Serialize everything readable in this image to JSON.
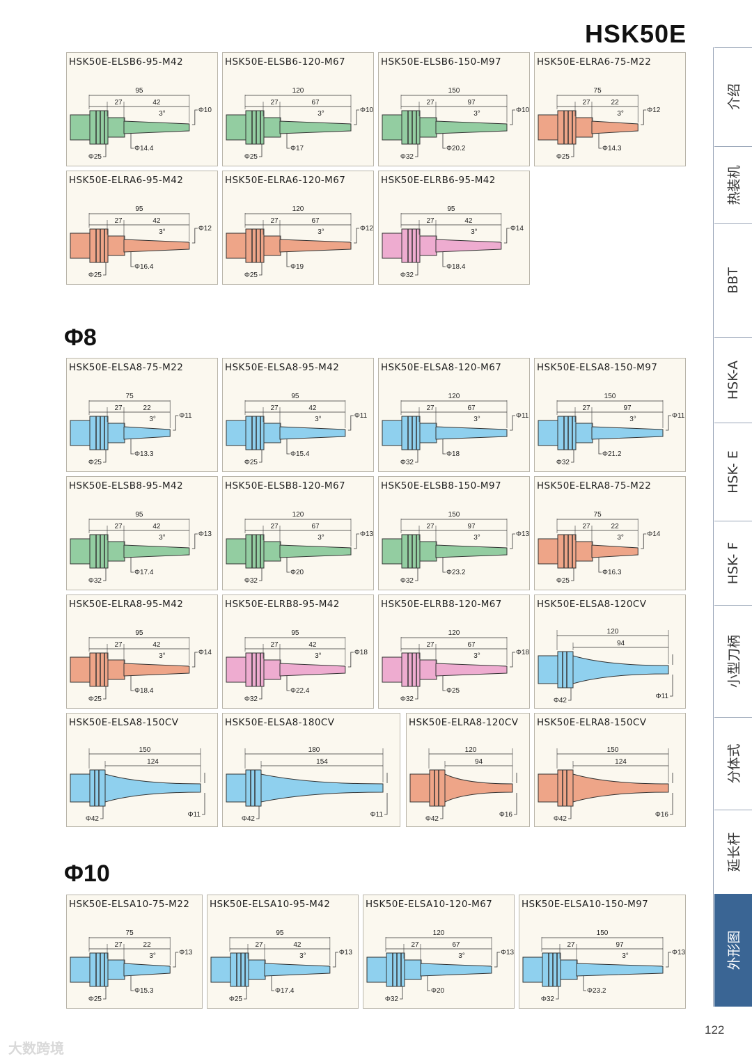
{
  "page": {
    "title": "HSK50E",
    "page_number": "122",
    "watermark": "大数跨境"
  },
  "sections": [
    {
      "title": ""
    },
    {
      "title": "Φ8"
    },
    {
      "title": "Φ10"
    }
  ],
  "side_tabs": [
    {
      "label": "介绍",
      "active": false
    },
    {
      "label": "热装机",
      "active": false
    },
    {
      "label": "BBT",
      "active": false
    },
    {
      "label": "HSK-A",
      "active": false
    },
    {
      "label": "HSK- E",
      "active": false
    },
    {
      "label": "HSK- F",
      "active": false
    },
    {
      "label": "小型刀柄",
      "active": false
    },
    {
      "label": "分体式",
      "active": false
    },
    {
      "label": "延长杆",
      "active": false
    },
    {
      "label": "外形图",
      "active": true
    }
  ],
  "colors": {
    "green": "#93cda1",
    "orange": "#eea588",
    "pink": "#eeacd0",
    "blue": "#8fd0ee"
  },
  "cards": [
    {
      "name": "HSK50E-ELSB6-95-M42",
      "type": "std",
      "color": "green",
      "L": "95",
      "a": "27",
      "b": "42",
      "angle": "3°",
      "tip": "Φ10",
      "base": "Φ14.4",
      "flange": "Φ25"
    },
    {
      "name": "HSK50E-ELSB6-120-M67",
      "type": "std",
      "color": "green",
      "L": "120",
      "a": "27",
      "b": "67",
      "angle": "3°",
      "tip": "Φ10",
      "base": "Φ17",
      "flange": "Φ25"
    },
    {
      "name": "HSK50E-ELSB6-150-M97",
      "type": "std",
      "color": "green",
      "L": "150",
      "a": "27",
      "b": "97",
      "angle": "3°",
      "tip": "Φ10",
      "base": "Φ20.2",
      "flange": "Φ32"
    },
    {
      "name": "HSK50E-ELRA6-75-M22",
      "type": "std",
      "color": "orange",
      "L": "75",
      "a": "27",
      "b": "22",
      "angle": "3°",
      "tip": "Φ12",
      "base": "Φ14.3",
      "flange": "Φ25"
    },
    {
      "name": "HSK50E-ELRA6-95-M42",
      "type": "std",
      "color": "orange",
      "L": "95",
      "a": "27",
      "b": "42",
      "angle": "3°",
      "tip": "Φ12",
      "base": "Φ16.4",
      "flange": "Φ25"
    },
    {
      "name": "HSK50E-ELRA6-120-M67",
      "type": "std",
      "color": "orange",
      "L": "120",
      "a": "27",
      "b": "67",
      "angle": "3°",
      "tip": "Φ12",
      "base": "Φ19",
      "flange": "Φ25"
    },
    {
      "name": "HSK50E-ELRB6-95-M42",
      "type": "std",
      "color": "pink",
      "L": "95",
      "a": "27",
      "b": "42",
      "angle": "3°",
      "tip": "Φ14",
      "base": "Φ18.4",
      "flange": "Φ32"
    },
    {
      "name": "HSK50E-ELSA8-75-M22",
      "type": "std",
      "color": "blue",
      "L": "75",
      "a": "27",
      "b": "22",
      "angle": "3°",
      "tip": "Φ11",
      "base": "Φ13.3",
      "flange": "Φ25"
    },
    {
      "name": "HSK50E-ELSA8-95-M42",
      "type": "std",
      "color": "blue",
      "L": "95",
      "a": "27",
      "b": "42",
      "angle": "3°",
      "tip": "Φ11",
      "base": "Φ15.4",
      "flange": "Φ25"
    },
    {
      "name": "HSK50E-ELSA8-120-M67",
      "type": "std",
      "color": "blue",
      "L": "120",
      "a": "27",
      "b": "67",
      "angle": "3°",
      "tip": "Φ11",
      "base": "Φ18",
      "flange": "Φ32"
    },
    {
      "name": "HSK50E-ELSA8-150-M97",
      "type": "std",
      "color": "blue",
      "L": "150",
      "a": "27",
      "b": "97",
      "angle": "3°",
      "tip": "Φ11",
      "base": "Φ21.2",
      "flange": "Φ32"
    },
    {
      "name": "HSK50E-ELSB8-95-M42",
      "type": "std",
      "color": "green",
      "L": "95",
      "a": "27",
      "b": "42",
      "angle": "3°",
      "tip": "Φ13",
      "base": "Φ17.4",
      "flange": "Φ32"
    },
    {
      "name": "HSK50E-ELSB8-120-M67",
      "type": "std",
      "color": "green",
      "L": "120",
      "a": "27",
      "b": "67",
      "angle": "3°",
      "tip": "Φ13",
      "base": "Φ20",
      "flange": "Φ32"
    },
    {
      "name": "HSK50E-ELSB8-150-M97",
      "type": "std",
      "color": "green",
      "L": "150",
      "a": "27",
      "b": "97",
      "angle": "3°",
      "tip": "Φ13",
      "base": "Φ23.2",
      "flange": "Φ32"
    },
    {
      "name": "HSK50E-ELRA8-75-M22",
      "type": "std",
      "color": "orange",
      "L": "75",
      "a": "27",
      "b": "22",
      "angle": "3°",
      "tip": "Φ14",
      "base": "Φ16.3",
      "flange": "Φ25"
    },
    {
      "name": "HSK50E-ELRA8-95-M42",
      "type": "std",
      "color": "orange",
      "L": "95",
      "a": "27",
      "b": "42",
      "angle": "3°",
      "tip": "Φ14",
      "base": "Φ18.4",
      "flange": "Φ25"
    },
    {
      "name": "HSK50E-ELRB8-95-M42",
      "type": "std",
      "color": "pink",
      "L": "95",
      "a": "27",
      "b": "42",
      "angle": "3°",
      "tip": "Φ18",
      "base": "Φ22.4",
      "flange": "Φ32"
    },
    {
      "name": "HSK50E-ELRB8-120-M67",
      "type": "std",
      "color": "pink",
      "L": "120",
      "a": "27",
      "b": "67",
      "angle": "3°",
      "tip": "Φ18",
      "base": "Φ25",
      "flange": "Φ32"
    },
    {
      "name": "HSK50E-ELSA8-120CV",
      "type": "cv",
      "color": "blue",
      "L": "120",
      "b": "94",
      "tip": "Φ11",
      "flange": "Φ42"
    },
    {
      "name": "HSK50E-ELSA8-150CV",
      "type": "cv",
      "color": "blue",
      "L": "150",
      "b": "124",
      "tip": "Φ11",
      "flange": "Φ42"
    },
    {
      "name": "HSK50E-ELSA8-180CV",
      "type": "cv",
      "color": "blue",
      "L": "180",
      "b": "154",
      "tip": "Φ11",
      "flange": "Φ42"
    },
    {
      "name": "HSK50E-ELRA8-120CV",
      "type": "cv",
      "color": "orange",
      "L": "120",
      "b": "94",
      "tip": "Φ16",
      "flange": "Φ42"
    },
    {
      "name": "HSK50E-ELRA8-150CV",
      "type": "cv",
      "color": "orange",
      "L": "150",
      "b": "124",
      "tip": "Φ16",
      "flange": "Φ42"
    },
    {
      "name": "HSK50E-ELSA10-75-M22",
      "type": "std",
      "color": "blue",
      "L": "75",
      "a": "27",
      "b": "22",
      "angle": "3°",
      "tip": "Φ13",
      "base": "Φ15.3",
      "flange": "Φ25"
    },
    {
      "name": "HSK50E-ELSA10-95-M42",
      "type": "std",
      "color": "blue",
      "L": "95",
      "a": "27",
      "b": "42",
      "angle": "3°",
      "tip": "Φ13",
      "base": "Φ17.4",
      "flange": "Φ25"
    },
    {
      "name": "HSK50E-ELSA10-120-M67",
      "type": "std",
      "color": "blue",
      "L": "120",
      "a": "27",
      "b": "67",
      "angle": "3°",
      "tip": "Φ13",
      "base": "Φ20",
      "flange": "Φ32"
    },
    {
      "name": "HSK50E-ELSA10-150-M97",
      "type": "std",
      "color": "blue",
      "L": "150",
      "a": "27",
      "b": "97",
      "angle": "3°",
      "tip": "Φ13",
      "base": "Φ23.2",
      "flange": "Φ32"
    }
  ]
}
